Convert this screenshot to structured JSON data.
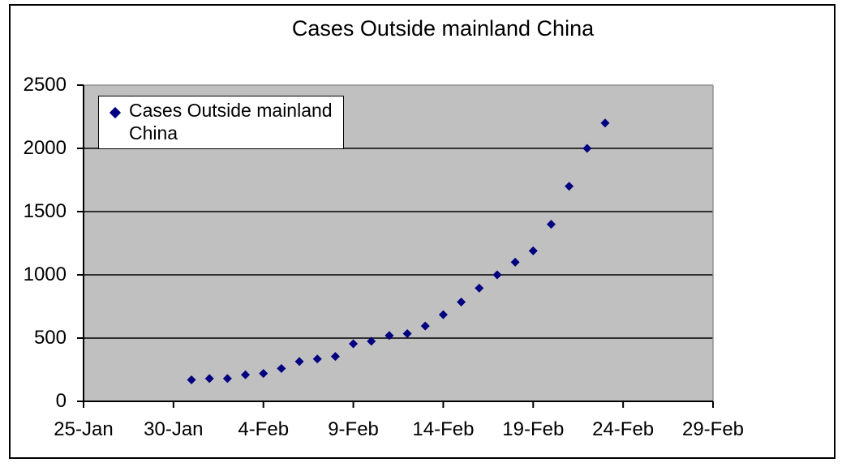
{
  "title": "Cases Outside mainland China",
  "legend": {
    "label_lines": [
      "Cases Outside mainland",
      "China"
    ],
    "marker_icon": "diamond-icon"
  },
  "colors": {
    "marker": "#000080",
    "plot_background": "#c0c0c0",
    "gridline": "#000000",
    "axis": "#000000",
    "plot_border": "#909090",
    "chart_background": "#ffffff",
    "text": "#000000"
  },
  "chart_data": {
    "type": "scatter",
    "title": "Cases Outside mainland China",
    "xlabel": "",
    "ylabel": "",
    "x_tick_labels": [
      "25-Jan",
      "30-Jan",
      "4-Feb",
      "9-Feb",
      "14-Feb",
      "19-Feb",
      "24-Feb",
      "29-Feb"
    ],
    "x_tick_interval_days": 5,
    "x_range_days": 35,
    "y_ticks": [
      0,
      500,
      1000,
      1500,
      2000,
      2500
    ],
    "ylim": [
      0,
      2500
    ],
    "grid": "horizontal",
    "legend_position": "top-left-inside",
    "marker_shape": "diamond",
    "series": [
      {
        "name": "Cases Outside mainland China",
        "points": [
          {
            "date": "31-Jan",
            "day": 6,
            "value": 170
          },
          {
            "date": "1-Feb",
            "day": 7,
            "value": 180
          },
          {
            "date": "2-Feb",
            "day": 8,
            "value": 180
          },
          {
            "date": "3-Feb",
            "day": 9,
            "value": 210
          },
          {
            "date": "4-Feb",
            "day": 10,
            "value": 220
          },
          {
            "date": "5-Feb",
            "day": 11,
            "value": 260
          },
          {
            "date": "6-Feb",
            "day": 12,
            "value": 315
          },
          {
            "date": "7-Feb",
            "day": 13,
            "value": 335
          },
          {
            "date": "8-Feb",
            "day": 14,
            "value": 355
          },
          {
            "date": "9-Feb",
            "day": 15,
            "value": 455
          },
          {
            "date": "10-Feb",
            "day": 16,
            "value": 475
          },
          {
            "date": "11-Feb",
            "day": 17,
            "value": 520
          },
          {
            "date": "12-Feb",
            "day": 18,
            "value": 535
          },
          {
            "date": "13-Feb",
            "day": 19,
            "value": 595
          },
          {
            "date": "14-Feb",
            "day": 20,
            "value": 685
          },
          {
            "date": "15-Feb",
            "day": 21,
            "value": 785
          },
          {
            "date": "16-Feb",
            "day": 22,
            "value": 895
          },
          {
            "date": "17-Feb",
            "day": 23,
            "value": 1000
          },
          {
            "date": "18-Feb",
            "day": 24,
            "value": 1100
          },
          {
            "date": "19-Feb",
            "day": 25,
            "value": 1190
          },
          {
            "date": "20-Feb",
            "day": 26,
            "value": 1400
          },
          {
            "date": "21-Feb",
            "day": 27,
            "value": 1700
          },
          {
            "date": "22-Feb",
            "day": 28,
            "value": 2000
          },
          {
            "date": "23-Feb",
            "day": 29,
            "value": 2200
          }
        ]
      }
    ]
  }
}
